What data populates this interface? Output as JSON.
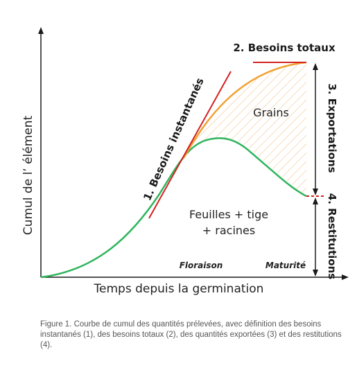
{
  "axes": {
    "y_label": "Cumul de l’ élément",
    "x_label": "Temps depuis la germination"
  },
  "labels": {
    "besoins_instantanes": "1. Besoins instantanés",
    "besoins_totaux": "2. Besoins totaux",
    "exportations": "3. Exportations",
    "restitutions": "4. Restitutions",
    "grains": "Grains",
    "feuilles_line1": "Feuilles + tige",
    "feuilles_line2": "+ racines",
    "floraison": "Floraison",
    "maturite": "Maturité"
  },
  "colors": {
    "total_curve": "#f0a030",
    "vegetative_curve": "#2eb55c",
    "tangent_lines": "#d42020",
    "hatch": "#f2c89a",
    "arrows": "#1a1a1a"
  },
  "caption": "Figure 1. Courbe de cumul des quantités prélevées, avec définition des besoins instantanés (1), des besoins totaux (2), des quantités exportées (3) et des restitutions (4)."
}
